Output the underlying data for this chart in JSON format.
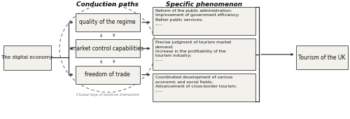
{
  "title_left": "Conduction paths",
  "title_right": "Specific phenomenon",
  "box_digital": "The digital economy",
  "box_tourism": "Tourism of the UK",
  "box_quality": "quality of the regime",
  "box_market": "market control capabilities",
  "box_freedom": "freedom of trade",
  "box_sp1": "Reform of the public administration;\nImprovement of government efficiency;\nBetter public services;\n......",
  "box_sp2": "Precise judgment of tourism market\ndemand;\nIncrease in the profitability of the\ntourism industry;\n......",
  "box_sp3": "Coordinated development of various\neconomic and social fields;\nAdvancement of cross-border tourism;\n......",
  "label_closed": "Closed loop of positive interaction",
  "bg_color": "#ffffff",
  "box_ec": "#555555",
  "text_color": "#111111",
  "arrow_color": "#222222",
  "dashed_color": "#777777",
  "figw": 5.0,
  "figh": 1.7,
  "dpi": 100
}
